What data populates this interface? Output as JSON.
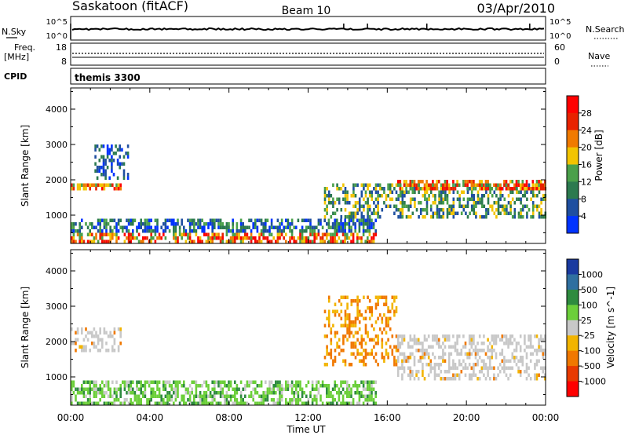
{
  "header": {
    "title": "Saskatoon (fitACF)",
    "beam": "Beam 10",
    "date": "03/Apr/2010"
  },
  "sky_panel": {
    "left_label": "N.Sky",
    "right_label": "N.Search",
    "left_ticks": [
      "10^5",
      "10^0"
    ],
    "right_ticks": [
      "10^5",
      "10^0"
    ]
  },
  "freq_panel": {
    "left_label_1": "Freq.",
    "left_label_2": "[MHz]",
    "right_label": "Nave",
    "left_ticks": [
      "18",
      "8"
    ],
    "right_ticks": [
      "60",
      "0"
    ]
  },
  "cpid_panel": {
    "label": "CPID",
    "program": "themis 3300"
  },
  "power_panel": {
    "ylabel": "Slant Range [km]",
    "yticks": [
      1000,
      2000,
      3000,
      4000
    ],
    "colorbar": {
      "label": "Power [dB]",
      "ticks": [
        "4",
        "8",
        "12",
        "16",
        "20",
        "24",
        "28"
      ],
      "colors": [
        "#0033ff",
        "#1f4fa0",
        "#2c7a4f",
        "#4aa04a",
        "#f2c400",
        "#f07a00",
        "#e82200",
        "#ff0000"
      ]
    }
  },
  "velocity_panel": {
    "ylabel": "Slant Range [km]",
    "yticks": [
      1000,
      2000,
      3000,
      4000
    ],
    "colorbar": {
      "label": "Velocity [m s^-1]",
      "ticks": [
        "1000",
        "500",
        "100",
        "25",
        "-25",
        "-100",
        "-500",
        "-1000"
      ],
      "colors": [
        "#1a3aa0",
        "#2f6fa0",
        "#2e8b3f",
        "#6ccf3a",
        "#c8c8c8",
        "#f2b400",
        "#f07800",
        "#e83a00",
        "#ff0000"
      ]
    }
  },
  "xaxis": {
    "ticks": [
      "00:00",
      "04:00",
      "08:00",
      "12:00",
      "16:00",
      "20:00",
      "00:00"
    ],
    "label": "Time UT"
  },
  "chart_data": {
    "type": "heatmap",
    "x_range_hours": [
      0,
      24
    ],
    "y_range_km": [
      200,
      4600
    ],
    "panels": [
      {
        "name": "Power",
        "echo_bands": [
          {
            "t_start": 0.0,
            "t_end": 2.6,
            "range_start_km": 1750,
            "range_end_km": 1900,
            "level": "strong"
          },
          {
            "t_start": 1.2,
            "t_end": 3.0,
            "range_start_km": 2000,
            "range_end_km": 3000,
            "level": "weak"
          },
          {
            "t_start": 0.0,
            "t_end": 15.5,
            "range_start_km": 250,
            "range_end_km": 900,
            "level": "strong-near"
          },
          {
            "t_start": 12.8,
            "t_end": 24.0,
            "range_start_km": 900,
            "range_end_km": 1900,
            "level": "moderate"
          },
          {
            "t_start": 16.5,
            "t_end": 24.0,
            "range_start_km": 1700,
            "range_end_km": 2000,
            "level": "strong"
          }
        ]
      },
      {
        "name": "Velocity",
        "echo_bands": [
          {
            "t_start": 0.0,
            "t_end": 2.6,
            "range_start_km": 1750,
            "range_end_km": 2400,
            "level": "low-velocity"
          },
          {
            "t_start": 0.0,
            "t_end": 15.5,
            "range_start_km": 250,
            "range_end_km": 900,
            "level": "positive"
          },
          {
            "t_start": 12.8,
            "t_end": 16.5,
            "range_start_km": 1300,
            "range_end_km": 3300,
            "level": "negative"
          },
          {
            "t_start": 16.5,
            "t_end": 24.0,
            "range_start_km": 900,
            "range_end_km": 2200,
            "level": "low-velocity"
          }
        ]
      }
    ]
  }
}
